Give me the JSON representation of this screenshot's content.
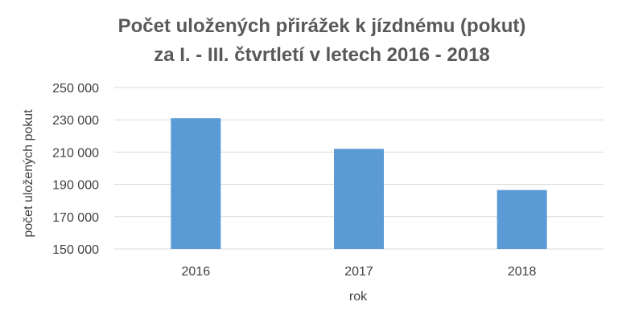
{
  "chart_data": {
    "type": "bar",
    "title_lines": [
      "Počet uložených přirážek k jízdnému (pokut)",
      "za I. - III. čtvrtletí v letech 2016 - 2018"
    ],
    "xlabel": "rok",
    "ylabel": "počet uložených pokut",
    "categories": [
      "2016",
      "2017",
      "2018"
    ],
    "values": [
      231000,
      212000,
      186500
    ],
    "ylim": [
      150000,
      250000
    ],
    "yticks": [
      150000,
      170000,
      190000,
      210000,
      230000,
      250000
    ],
    "ytick_labels": [
      "150 000",
      "170 000",
      "190 000",
      "210 000",
      "230 000",
      "250 000"
    ],
    "bar_color": "#5b9bd5",
    "grid": true,
    "legend": "none"
  }
}
